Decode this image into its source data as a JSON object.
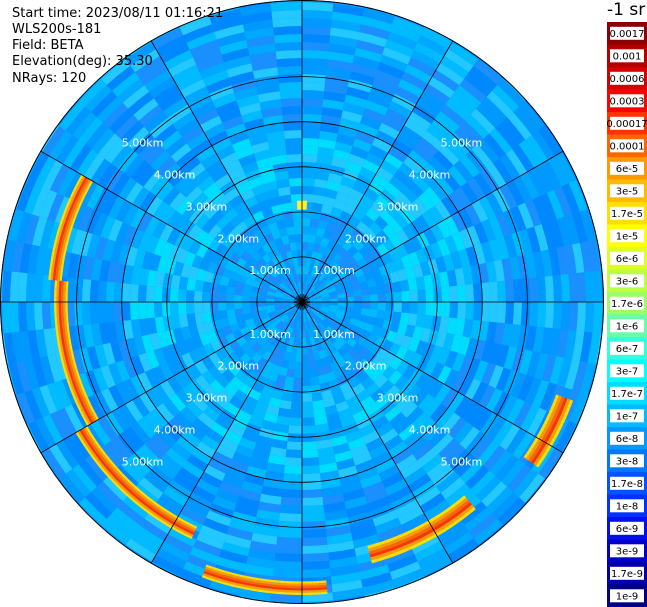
{
  "info": {
    "start_time": "Start time: 2023/08/11 01:16:21",
    "instrument": "WLS200s-181",
    "field": "Field: BETA",
    "elevation": "Elevation(deg): 35.30",
    "nrays": "NRays: 120"
  },
  "colorbar": {
    "unit": "-1 sr",
    "labels": [
      "0.0017",
      "0.001",
      "0.0006",
      "0.0003",
      "0.00017",
      "0.0001",
      "6e-5",
      "3e-5",
      "1.7e-5",
      "1e-5",
      "6e-6",
      "3e-6",
      "1.7e-6",
      "1e-6",
      "6e-7",
      "3e-7",
      "1.7e-7",
      "1e-7",
      "6e-8",
      "3e-8",
      "1.7e-8",
      "1e-8",
      "6e-9",
      "3e-9",
      "1.7e-9",
      "1e-9"
    ],
    "colors": [
      "#8b0000",
      "#b20000",
      "#d40000",
      "#ff0000",
      "#ff3300",
      "#ff6600",
      "#ff9900",
      "#ffbb00",
      "#ffdd00",
      "#ffff00",
      "#ddff22",
      "#bbff44",
      "#99ff66",
      "#66ffaa",
      "#33ffdd",
      "#00ffff",
      "#00ddff",
      "#00bbff",
      "#0099ff",
      "#0077ff",
      "#0055ff",
      "#0033ff",
      "#0011ee",
      "#0000cc",
      "#0000aa",
      "#000088"
    ]
  },
  "chart_data": {
    "type": "heatmap",
    "projection": "polar",
    "range_rings_km": [
      1,
      2,
      3,
      4,
      5
    ],
    "ring_labels": [
      "1.00km",
      "2.00km",
      "3.00km",
      "4.00km",
      "5.00km"
    ],
    "max_range_km": 6.7,
    "n_rays": 120,
    "spoke_count": 12,
    "bands": [
      {
        "from_az": 275,
        "to_az": 300,
        "range_km": [
          5.35,
          5.65
        ],
        "level": "3e-5 to 1e-4"
      },
      {
        "from_az": 240,
        "to_az": 275,
        "range_km": [
          5.2,
          5.5
        ],
        "level": "1.7e-5 to 6e-5"
      },
      {
        "from_az": 205,
        "to_az": 240,
        "range_km": [
          5.5,
          5.8
        ],
        "level": "3e-5 to 1e-4"
      },
      {
        "from_az": 175,
        "to_az": 200,
        "range_km": [
          6.2,
          6.5
        ],
        "level": "1.7e-5 to 6e-5"
      },
      {
        "from_az": 140,
        "to_az": 165,
        "range_km": [
          5.6,
          6.0
        ],
        "level": "1.7e-5 to 6e-5"
      },
      {
        "from_az": 110,
        "to_az": 125,
        "range_km": [
          6.0,
          6.4
        ],
        "level": "1.7e-5 to 6e-5"
      }
    ]
  }
}
